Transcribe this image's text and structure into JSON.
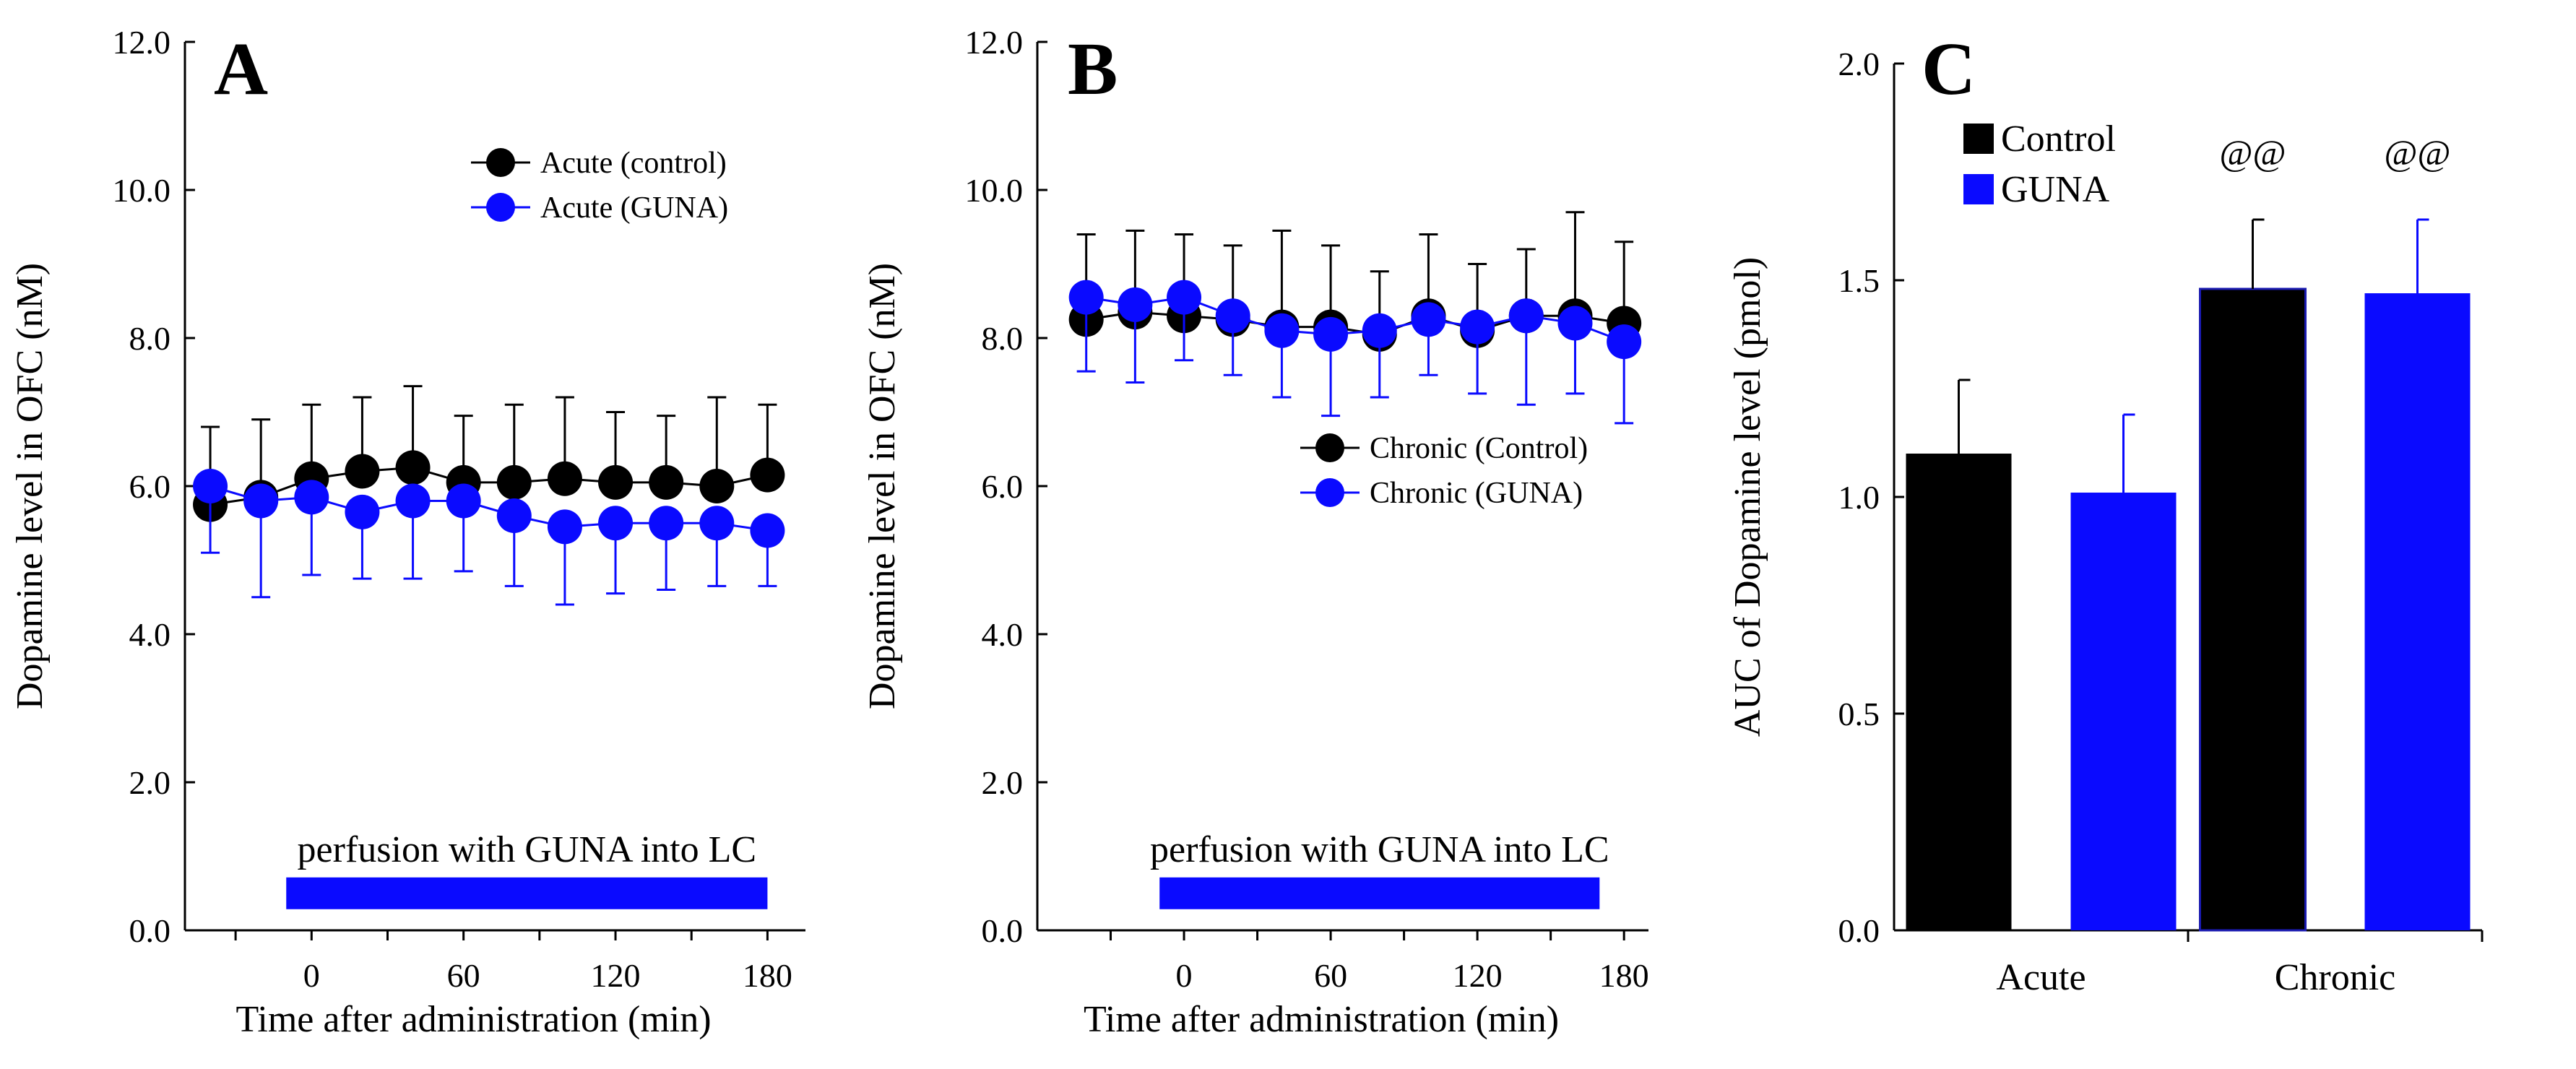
{
  "colors": {
    "black": "#000000",
    "blue": "#0a0aff",
    "bar_edge": "#1a1ab0"
  },
  "chart_data": [
    {
      "panel": "A",
      "type": "line",
      "title": "",
      "xlabel": "Time after administration (min)",
      "ylabel": "Dopamine level in OFC (nM)",
      "xlim": [
        -50,
        195
      ],
      "ylim": [
        0,
        12
      ],
      "xticks": [
        0,
        60,
        120,
        180
      ],
      "xtick_labels": [
        "0",
        "60",
        "120",
        "180"
      ],
      "yticks": [
        0,
        2,
        4,
        6,
        8,
        10,
        12
      ],
      "ytick_labels": [
        "0.0",
        "2.0",
        "4.0",
        "6.0",
        "8.0",
        "10.0",
        "12.0"
      ],
      "legend_position": "top-right",
      "series": [
        {
          "name": "Acute (control)",
          "color": "#000000",
          "x": [
            -40,
            -20,
            0,
            20,
            40,
            60,
            80,
            100,
            120,
            140,
            160,
            180
          ],
          "values": [
            5.75,
            5.85,
            6.1,
            6.2,
            6.25,
            6.05,
            6.05,
            6.1,
            6.05,
            6.05,
            6.0,
            6.15
          ],
          "errors": [
            1.05,
            1.05,
            1.0,
            1.0,
            1.1,
            0.9,
            1.05,
            1.1,
            0.95,
            0.9,
            1.2,
            0.95
          ]
        },
        {
          "name": "Acute (GUNA)",
          "color": "#0a0aff",
          "x": [
            -40,
            -20,
            0,
            20,
            40,
            60,
            80,
            100,
            120,
            140,
            160,
            180
          ],
          "values": [
            6.0,
            5.8,
            5.85,
            5.65,
            5.8,
            5.8,
            5.6,
            5.45,
            5.5,
            5.5,
            5.5,
            5.4
          ],
          "errors": [
            0.9,
            1.3,
            1.05,
            0.9,
            1.05,
            0.95,
            0.95,
            1.05,
            0.95,
            0.9,
            0.85,
            0.75
          ]
        }
      ],
      "annotation": {
        "text": "perfusion with GUNA into LC",
        "start": -10,
        "end": 180,
        "level": 0.5
      }
    },
    {
      "panel": "B",
      "type": "line",
      "title": "",
      "xlabel": "Time after administration (min)",
      "ylabel": "Dopamine level in OFC (nM)",
      "xlim": [
        -60,
        190
      ],
      "ylim": [
        0,
        12
      ],
      "xticks": [
        0,
        60,
        120,
        180
      ],
      "xtick_labels": [
        "0",
        "60",
        "120",
        "180"
      ],
      "yticks": [
        0,
        2,
        4,
        6,
        8,
        10,
        12
      ],
      "ytick_labels": [
        "0.0",
        "2.0",
        "4.0",
        "6.0",
        "8.0",
        "10.0",
        "12.0"
      ],
      "legend_position": "middle-right",
      "series": [
        {
          "name": "Chronic (Control)",
          "color": "#000000",
          "x": [
            -40,
            -20,
            0,
            20,
            40,
            60,
            80,
            100,
            120,
            140,
            160,
            180
          ],
          "values": [
            8.25,
            8.35,
            8.3,
            8.25,
            8.15,
            8.15,
            8.05,
            8.3,
            8.1,
            8.3,
            8.3,
            8.2
          ],
          "errors": [
            1.15,
            1.1,
            1.1,
            1.0,
            1.3,
            1.1,
            0.85,
            1.1,
            0.9,
            0.9,
            1.4,
            1.1
          ]
        },
        {
          "name": "Chronic (GUNA)",
          "color": "#0a0aff",
          "x": [
            -40,
            -20,
            0,
            20,
            40,
            60,
            80,
            100,
            120,
            140,
            160,
            180
          ],
          "values": [
            8.55,
            8.45,
            8.55,
            8.3,
            8.1,
            8.05,
            8.1,
            8.25,
            8.15,
            8.3,
            8.2,
            7.95
          ],
          "errors": [
            1.0,
            1.05,
            0.85,
            0.8,
            0.9,
            1.1,
            0.9,
            0.75,
            0.9,
            1.2,
            0.95,
            1.1
          ]
        }
      ],
      "annotation": {
        "text": "perfusion with GUNA into LC",
        "start": -10,
        "end": 170,
        "level": 0.5
      }
    },
    {
      "panel": "C",
      "type": "bar",
      "title": "",
      "xlabel": "",
      "ylabel": "AUC of Dopamine level (pmol)",
      "categories": [
        "Acute",
        "Chronic"
      ],
      "ylim": [
        0,
        2
      ],
      "yticks": [
        0,
        0.5,
        1.0,
        1.5,
        2.0
      ],
      "ytick_labels": [
        "0.0",
        "0.5",
        "1.0",
        "1.5",
        "2.0"
      ],
      "legend_position": "top-left",
      "series": [
        {
          "name": "Control",
          "color": "#000000",
          "values": [
            1.1,
            1.48
          ],
          "errors": [
            0.17,
            0.16
          ]
        },
        {
          "name": "GUNA",
          "color": "#0a0aff",
          "values": [
            1.01,
            1.47
          ],
          "errors": [
            0.18,
            0.17
          ]
        }
      ],
      "annotations": [
        {
          "text": "@@",
          "category": 1,
          "series": 0
        },
        {
          "text": "@@",
          "category": 1,
          "series": 1
        }
      ]
    }
  ]
}
